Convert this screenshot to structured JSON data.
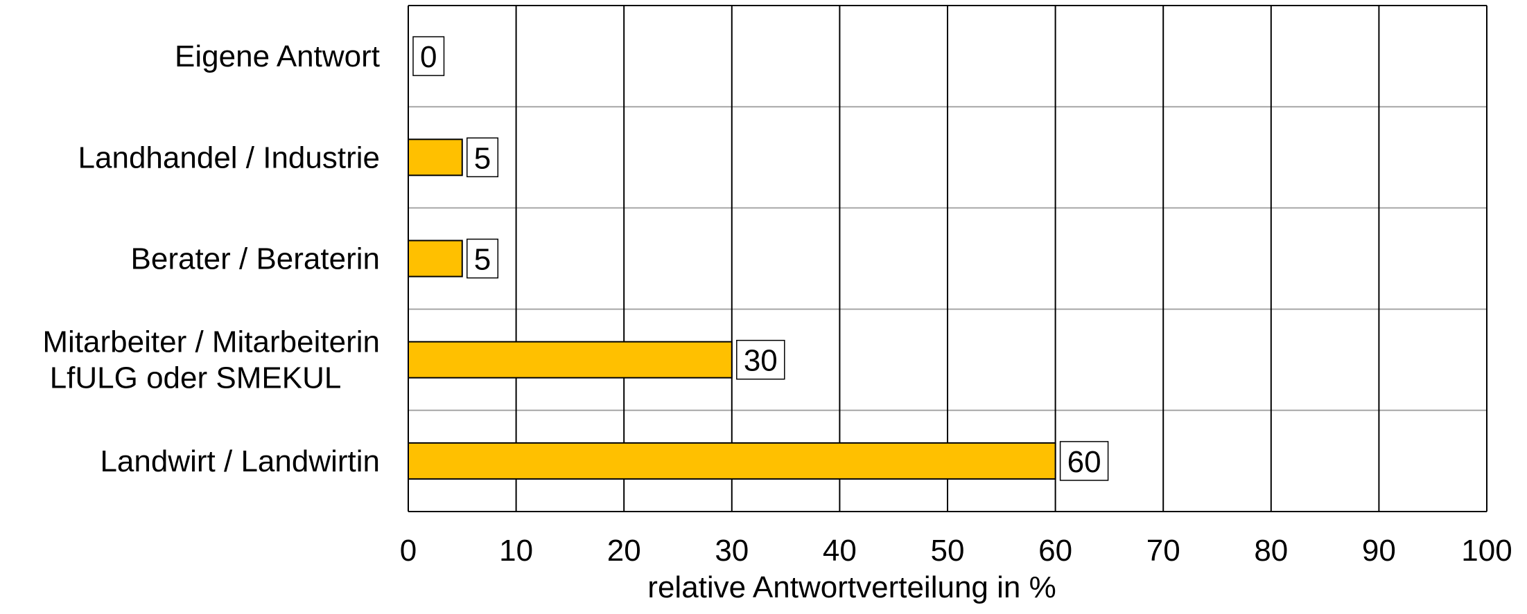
{
  "chart_data": {
    "type": "bar",
    "orientation": "horizontal",
    "categories": [
      [
        "Eigene Antwort"
      ],
      [
        "Landhandel / Industrie"
      ],
      [
        "Berater / Beraterin"
      ],
      [
        "Mitarbeiter / Mitarbeiterin",
        "LfULG oder SMEKUL"
      ],
      [
        "Landwirt / Landwirtin"
      ]
    ],
    "values": [
      0,
      5,
      5,
      30,
      60
    ],
    "xlabel": "relative Antwortverteilung in %",
    "ylabel": "",
    "xlim": [
      0,
      100
    ],
    "xticks": [
      0,
      10,
      20,
      30,
      40,
      50,
      60,
      70,
      80,
      90,
      100
    ],
    "grid": true,
    "data_labels": true,
    "bar_color": "#FFC000"
  }
}
